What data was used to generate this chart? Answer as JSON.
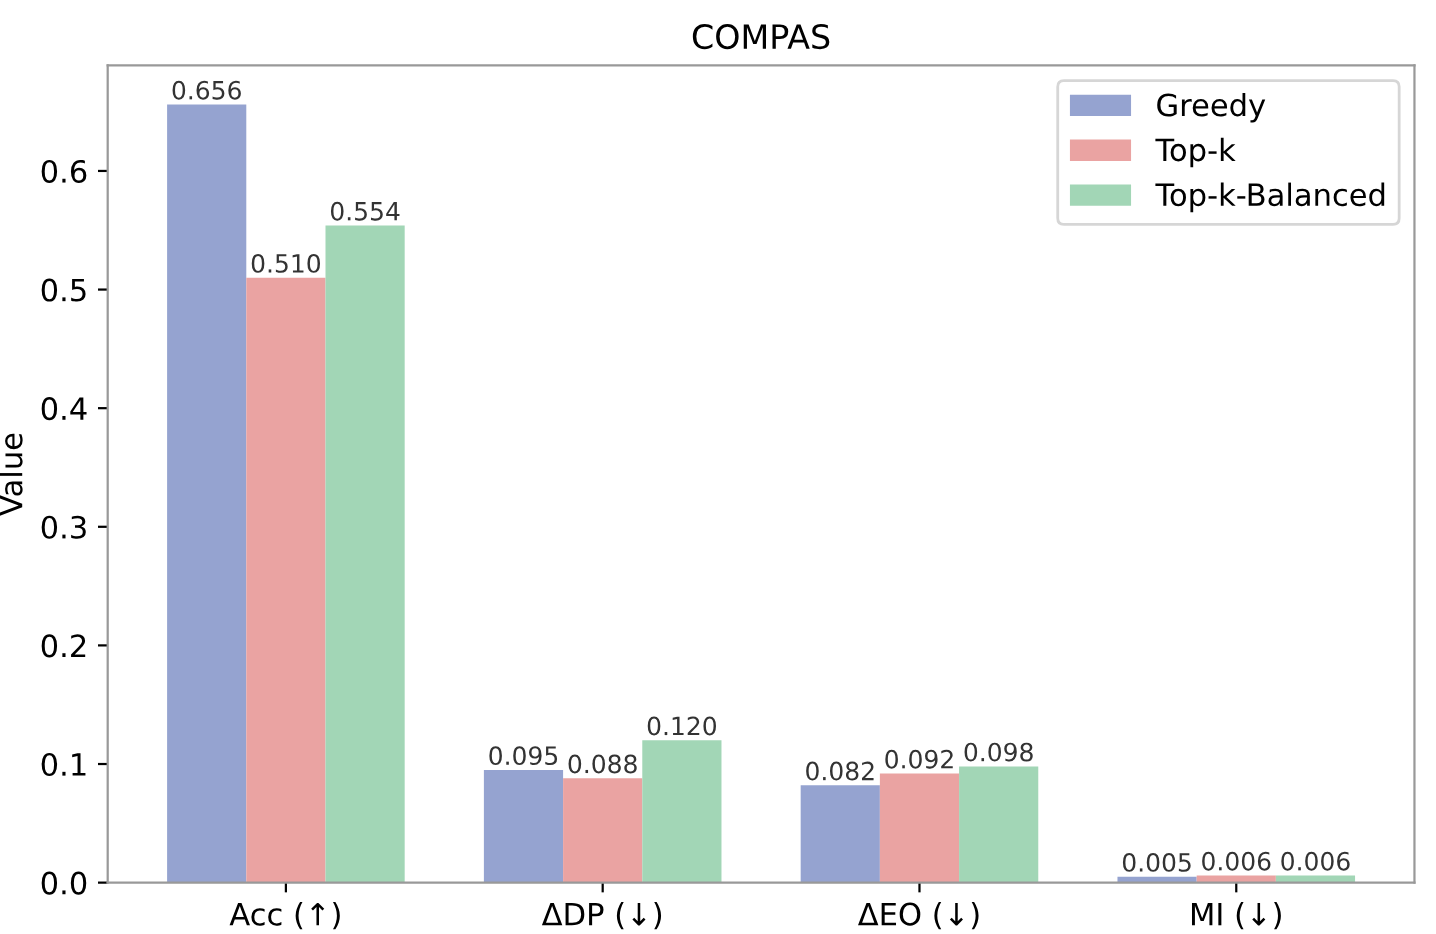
{
  "chart_data": {
    "type": "bar",
    "title": "COMPAS",
    "ylabel": "Value",
    "categories": [
      "Acc (↑)",
      "ΔDP (↓)",
      "ΔEO (↓)",
      "MI (↓)"
    ],
    "series": [
      {
        "name": "Greedy",
        "color": "#95a3d0",
        "values": [
          0.656,
          0.095,
          0.082,
          0.005
        ],
        "value_labels": [
          "0.656",
          "0.095",
          "0.082",
          "0.005"
        ]
      },
      {
        "name": "Top-k",
        "color": "#eaa3a2",
        "values": [
          0.51,
          0.088,
          0.092,
          0.006
        ],
        "value_labels": [
          "0.510",
          "0.088",
          "0.092",
          "0.006"
        ]
      },
      {
        "name": "Top-k-Balanced",
        "color": "#a2d6b6",
        "values": [
          0.554,
          0.12,
          0.098,
          0.006
        ],
        "value_labels": [
          "0.554",
          "0.120",
          "0.098",
          "0.006"
        ]
      }
    ],
    "ylim": [
      0,
      0.689
    ],
    "yticks": [
      {
        "value": 0,
        "label": "0.0"
      },
      {
        "value": 0.1,
        "label": "0.1"
      },
      {
        "value": 0.2,
        "label": "0.2"
      },
      {
        "value": 0.3,
        "label": "0.3"
      },
      {
        "value": 0.4,
        "label": "0.4"
      },
      {
        "value": 0.5,
        "label": "0.5"
      },
      {
        "value": 0.6,
        "label": "0.6"
      }
    ],
    "grid": false,
    "legend": "top right"
  }
}
